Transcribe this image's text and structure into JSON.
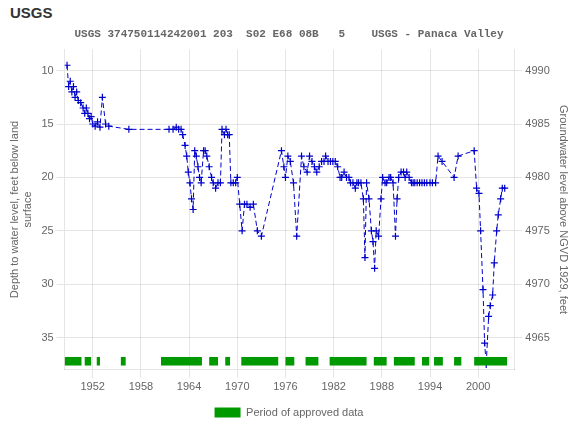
{
  "chart_data": {
    "type": "line",
    "title": "USGS 374750114242001 203  S02 E68 08B   5    USGS - Panaca Valley",
    "annotations": [
      "USGS"
    ],
    "ylabel": "Depth to water level, feet below land\nsurface",
    "y2label": "Groundwater level above NGVD 1929, feet",
    "xlim": [
      1948.5,
      2004.5
    ],
    "xticks": [
      1952,
      1958,
      1964,
      1970,
      1976,
      1982,
      1988,
      1994,
      2000
    ],
    "ylim": [
      38,
      8
    ],
    "yticks": [
      10,
      15,
      20,
      25,
      30,
      35
    ],
    "y2lim": [
      4962,
      4992
    ],
    "y2ticks": [
      4990,
      4985,
      4980,
      4975,
      4970,
      4965
    ],
    "grid": true,
    "legend": "bottom",
    "series": [
      {
        "color": "#0000cc",
        "line_style": "dashed",
        "marker": "plus",
        "x": [
          1948.8,
          1949.0,
          1949.2,
          1949.4,
          1949.6,
          1949.8,
          1950.0,
          1950.2,
          1950.5,
          1950.8,
          1951.0,
          1951.2,
          1951.4,
          1951.6,
          1951.8,
          1952.0,
          1952.3,
          1952.6,
          1952.9,
          1953.2,
          1953.6,
          1954.0,
          1956.5,
          1961.5,
          1962.0,
          1962.4,
          1962.7,
          1963.0,
          1963.2,
          1963.5,
          1963.7,
          1963.9,
          1964.1,
          1964.3,
          1964.5,
          1964.7,
          1964.9,
          1965.1,
          1965.3,
          1965.5,
          1965.8,
          1966.0,
          1966.2,
          1966.5,
          1966.8,
          1967.0,
          1967.3,
          1967.6,
          1967.9,
          1968.1,
          1968.4,
          1968.6,
          1968.8,
          1969.0,
          1969.2,
          1969.5,
          1969.8,
          1970.0,
          1970.3,
          1970.6,
          1970.9,
          1971.2,
          1971.6,
          1972.0,
          1972.5,
          1973.0,
          1975.5,
          1975.8,
          1976.0,
          1976.3,
          1976.6,
          1977.0,
          1977.4,
          1978.0,
          1978.3,
          1978.7,
          1979.0,
          1979.3,
          1979.6,
          1979.9,
          1980.2,
          1980.5,
          1980.8,
          1981.0,
          1981.3,
          1981.6,
          1981.9,
          1982.2,
          1982.5,
          1982.8,
          1983.0,
          1983.3,
          1983.6,
          1983.9,
          1984.1,
          1984.4,
          1984.7,
          1984.9,
          1985.1,
          1985.4,
          1985.7,
          1985.9,
          1986.1,
          1986.4,
          1986.7,
          1986.9,
          1987.1,
          1987.3,
          1987.6,
          1987.9,
          1988.1,
          1988.4,
          1988.6,
          1988.9,
          1989.1,
          1989.4,
          1989.7,
          1989.9,
          1990.1,
          1990.4,
          1990.7,
          1990.9,
          1991.1,
          1991.4,
          1991.7,
          1991.9,
          1992.1,
          1992.4,
          1992.7,
          1993.0,
          1993.3,
          1993.6,
          1994.0,
          1994.3,
          1994.7,
          1995.0,
          1995.5,
          1997.0,
          1997.5,
          1999.5,
          1999.8,
          2000.1,
          2000.3,
          2000.6,
          2000.8,
          2001.0,
          2001.3,
          2001.5,
          2001.8,
          2002.0,
          2002.3,
          2002.5,
          2002.8,
          2003.0,
          2003.3
        ],
        "values": [
          9.5,
          11.5,
          11.0,
          12.0,
          11.5,
          12.5,
          12.0,
          12.8,
          13.0,
          13.5,
          14.0,
          13.5,
          14.0,
          14.5,
          14.3,
          15.0,
          15.2,
          14.8,
          15.3,
          12.5,
          15.0,
          15.2,
          15.5,
          15.5,
          15.5,
          15.3,
          15.5,
          15.5,
          16.0,
          17.0,
          18.0,
          19.5,
          20.5,
          22.0,
          23.0,
          17.5,
          18.0,
          19.0,
          20.0,
          20.5,
          17.5,
          17.5,
          18.0,
          19.0,
          20.0,
          20.5,
          21.0,
          20.5,
          20.5,
          15.5,
          16.0,
          15.5,
          16.0,
          16.0,
          20.5,
          20.5,
          20.5,
          20.0,
          22.5,
          25.0,
          22.5,
          22.5,
          22.8,
          22.5,
          25.0,
          25.5,
          17.5,
          19.0,
          20.0,
          18.0,
          18.5,
          20.5,
          25.5,
          18.0,
          19.0,
          19.5,
          18.0,
          18.5,
          19.0,
          19.5,
          19.0,
          18.5,
          18.5,
          18.0,
          18.5,
          18.5,
          18.5,
          18.5,
          19.0,
          20.0,
          20.0,
          19.5,
          20.0,
          20.0,
          20.5,
          20.5,
          21.0,
          20.5,
          20.5,
          20.5,
          22.0,
          27.5,
          20.5,
          22.0,
          25.0,
          26.0,
          28.5,
          25.0,
          25.5,
          22.0,
          20.0,
          20.5,
          20.5,
          20.0,
          20.0,
          20.5,
          25.5,
          22.0,
          20.0,
          19.5,
          19.5,
          20.0,
          19.5,
          20.0,
          20.5,
          20.5,
          20.5,
          20.5,
          20.5,
          20.5,
          20.5,
          20.5,
          20.5,
          20.5,
          20.5,
          18.0,
          18.5,
          20.0,
          18.0,
          17.5,
          21.0,
          21.5,
          25.0,
          30.5,
          35.5,
          37.5,
          33.0,
          32.0,
          31.0,
          28.0,
          25.0,
          23.5,
          22.0,
          21.0,
          21.0
        ]
      },
      {
        "name": "Period of approved data",
        "type": "bar",
        "orientation": "horizontal",
        "color": "#009900",
        "y": 37.2,
        "height": 0.8,
        "periods": [
          [
            1948.5,
            1950.6
          ],
          [
            1951.0,
            1951.8
          ],
          [
            1952.5,
            1952.9
          ],
          [
            1955.5,
            1956.1
          ],
          [
            1960.5,
            1965.6
          ],
          [
            1966.5,
            1967.6
          ],
          [
            1968.5,
            1969.1
          ],
          [
            1970.5,
            1975.1
          ],
          [
            1976.0,
            1977.1
          ],
          [
            1978.5,
            1980.1
          ],
          [
            1981.5,
            1986.1
          ],
          [
            1987.0,
            1988.6
          ],
          [
            1989.5,
            1992.1
          ],
          [
            1993.0,
            1993.9
          ],
          [
            1994.5,
            1995.6
          ],
          [
            1997.0,
            1997.9
          ],
          [
            1999.5,
            2003.6
          ]
        ]
      }
    ]
  }
}
